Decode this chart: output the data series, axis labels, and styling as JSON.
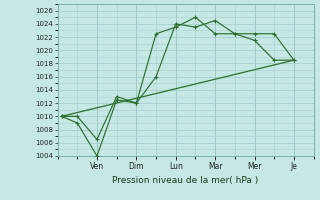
{
  "bg_color": "#c5e8e5",
  "grid_color": "#a8cece",
  "line_color": "#2d6e2d",
  "title": "Pression niveau de la mer( hPa )",
  "ylim": [
    1004,
    1027
  ],
  "yticks": [
    1004,
    1006,
    1008,
    1010,
    1012,
    1014,
    1016,
    1018,
    1020,
    1022,
    1024,
    1026
  ],
  "day_positions": [
    2,
    4,
    6,
    8,
    10,
    12
  ],
  "day_labels": [
    "Ven",
    "Dim",
    "Lun",
    "Mar",
    "Mer",
    "Je"
  ],
  "xlim": [
    0,
    13
  ],
  "series1_x": [
    0.2,
    1.0,
    2.0,
    3.0,
    4.0,
    5.0,
    6.0,
    7.0,
    8.0,
    9.0,
    10.0,
    11.0,
    12.0
  ],
  "series1_y": [
    1010.0,
    1009.0,
    1004.0,
    1012.5,
    1012.0,
    1022.5,
    1023.5,
    1025.0,
    1022.5,
    1022.5,
    1021.5,
    1018.5,
    1018.5
  ],
  "series2_x": [
    0.2,
    1.0,
    2.0,
    3.0,
    4.0,
    5.0,
    6.0,
    7.0,
    8.0,
    9.0,
    10.0,
    11.0,
    12.0
  ],
  "series2_y": [
    1010.0,
    1010.0,
    1006.5,
    1013.0,
    1012.0,
    1016.0,
    1024.0,
    1023.5,
    1024.5,
    1022.5,
    1022.5,
    1022.5,
    1018.5
  ],
  "series3_x": [
    0.2,
    12.0
  ],
  "series3_y": [
    1010.0,
    1018.5
  ]
}
